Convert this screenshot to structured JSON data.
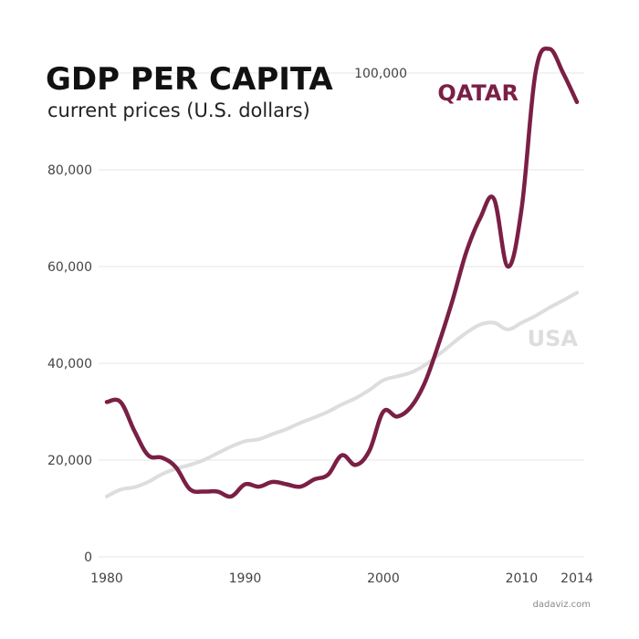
{
  "chart_data": {
    "type": "line",
    "title": "GDP PER CAPITA",
    "subtitle": "current prices (U.S. dollars)",
    "xlabel": "",
    "ylabel": "",
    "xlim": [
      1980,
      2014
    ],
    "ylim": [
      0,
      100000
    ],
    "x_ticks": [
      1980,
      1990,
      2000,
      2010,
      2014
    ],
    "x_tick_labels": [
      "1980",
      "1990",
      "2000",
      "2010",
      "2014"
    ],
    "y_ticks": [
      0,
      20000,
      40000,
      60000,
      80000,
      100000
    ],
    "y_tick_labels": [
      "0",
      "20,000",
      "40,000",
      "60,000",
      "80,000",
      "100,000"
    ],
    "grid": true,
    "series": [
      {
        "name": "USA",
        "color": "#dddddd",
        "x": [
          1980,
          1981,
          1982,
          1983,
          1984,
          1985,
          1986,
          1987,
          1988,
          1989,
          1990,
          1991,
          1992,
          1993,
          1994,
          1995,
          1996,
          1997,
          1998,
          1999,
          2000,
          2001,
          2002,
          2003,
          2004,
          2005,
          2006,
          2007,
          2008,
          2009,
          2010,
          2011,
          2012,
          2013,
          2014
        ],
        "values": [
          12500,
          13900,
          14400,
          15500,
          17100,
          18200,
          19000,
          20000,
          21400,
          22800,
          23900,
          24300,
          25400,
          26400,
          27700,
          28800,
          30000,
          31500,
          32800,
          34500,
          36500,
          37300,
          38100,
          39600,
          41800,
          44100,
          46300,
          48000,
          48400,
          47000,
          48400,
          49800,
          51500,
          53000,
          54600
        ]
      },
      {
        "name": "QATAR",
        "color": "#7a1f45",
        "x": [
          1980,
          1981,
          1982,
          1983,
          1984,
          1985,
          1986,
          1987,
          1988,
          1989,
          1990,
          1991,
          1992,
          1993,
          1994,
          1995,
          1996,
          1997,
          1998,
          1999,
          2000,
          2001,
          2002,
          2003,
          2004,
          2005,
          2006,
          2007,
          2008,
          2009,
          2010,
          2011,
          2012,
          2013,
          2014
        ],
        "values": [
          32000,
          32000,
          26000,
          21000,
          20500,
          18500,
          14000,
          13500,
          13500,
          12500,
          15000,
          14500,
          15500,
          15000,
          14500,
          16000,
          17000,
          21000,
          19000,
          22000,
          30000,
          29000,
          31000,
          36000,
          44000,
          53000,
          63000,
          70000,
          74000,
          60000,
          72000,
          100000,
          105000,
          100000,
          94000
        ]
      }
    ]
  },
  "credit": "dadaviz.com"
}
